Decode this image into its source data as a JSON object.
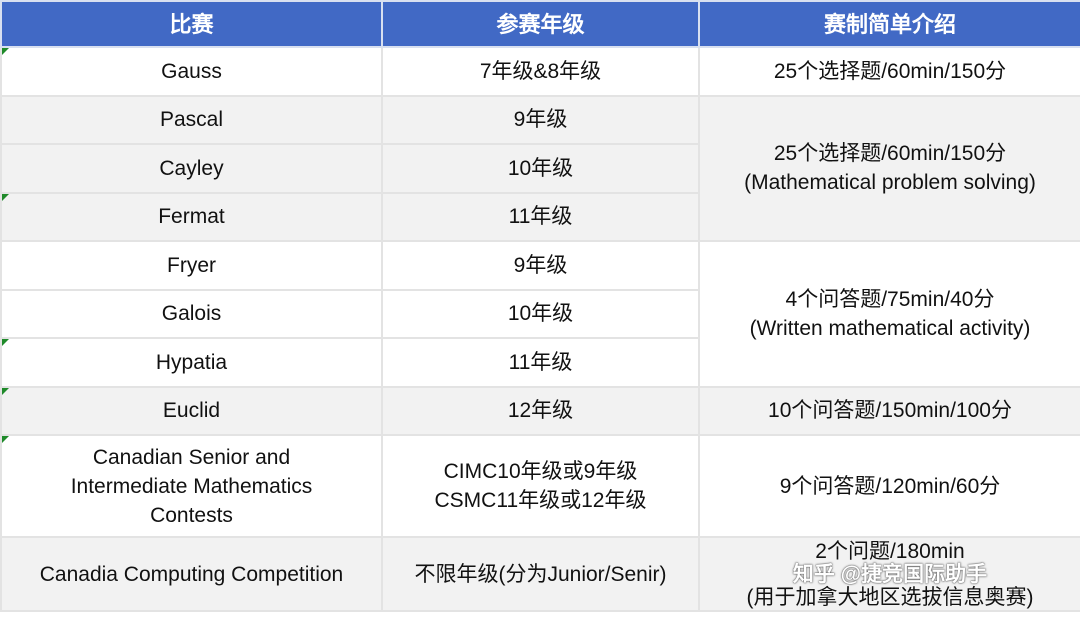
{
  "headers": [
    "比赛",
    "参赛年级",
    "赛制简单介绍"
  ],
  "rows": [
    {
      "name": "Gauss",
      "grade": "7年级&8年级",
      "format": [
        "25个选择题/60min/150分"
      ]
    },
    {
      "name": "Pascal",
      "grade": "9年级",
      "format": [
        "25个选择题/60min/150分",
        "(Mathematical problem solving)"
      ]
    },
    {
      "name": "Cayley",
      "grade": "10年级"
    },
    {
      "name": "Fermat",
      "grade": "11年级"
    },
    {
      "name": "Fryer",
      "grade": "9年级",
      "format": [
        "4个问答题/75min/40分",
        "(Written mathematical activity)"
      ]
    },
    {
      "name": "Galois",
      "grade": "10年级"
    },
    {
      "name": "Hypatia",
      "grade": "11年级"
    },
    {
      "name": "Euclid",
      "grade": "12年级",
      "format": [
        "10个问答题/150min/100分"
      ]
    },
    {
      "name": [
        "Canadian Senior and",
        "Intermediate Mathematics",
        "Contests"
      ],
      "grade": [
        "CIMC10年级或9年级",
        "CSMC11年级或12年级"
      ],
      "format": [
        "9个问答题/120min/60分"
      ]
    },
    {
      "name": "Canadia Computing Competition",
      "grade": "不限年级(分为Junior/Senir)",
      "format": [
        "2个问题/180min",
        "(用于加拿大地区选拔信息奥赛)"
      ]
    }
  ],
  "watermark": "知乎 @捷竞国际助手"
}
